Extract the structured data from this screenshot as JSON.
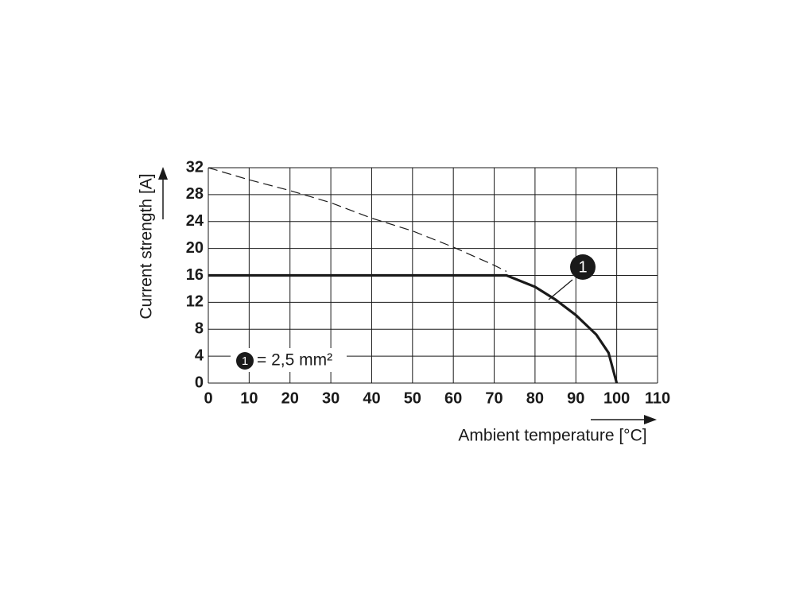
{
  "chart_data": {
    "type": "line",
    "xlabel": "Ambient temperature [°C]",
    "ylabel": "Current strength [A]",
    "xlim": [
      0,
      110
    ],
    "xticks": [
      0,
      10,
      20,
      30,
      40,
      50,
      60,
      70,
      80,
      90,
      100,
      110
    ],
    "ylim": [
      0,
      32
    ],
    "yticks": [
      0,
      4,
      8,
      12,
      16,
      20,
      24,
      28,
      32
    ],
    "grid": true,
    "series": [
      {
        "color": "#1a1a1a",
        "dashed": true,
        "x": [
          0,
          10,
          20,
          30,
          40,
          50,
          60,
          70,
          73
        ],
        "values": [
          32,
          30.2,
          28.6,
          26.8,
          24.5,
          22.6,
          20.2,
          17.5,
          16.6
        ]
      },
      {
        "color": "#1a1a1a",
        "dashed": false,
        "x": [
          0,
          73,
          80,
          85,
          90,
          95,
          98,
          100
        ],
        "values": [
          16,
          16,
          14.3,
          12.4,
          10.1,
          7.2,
          4.5,
          0
        ]
      }
    ],
    "annotation": {
      "marker": "1",
      "label": "= 2,5 mm²"
    }
  }
}
